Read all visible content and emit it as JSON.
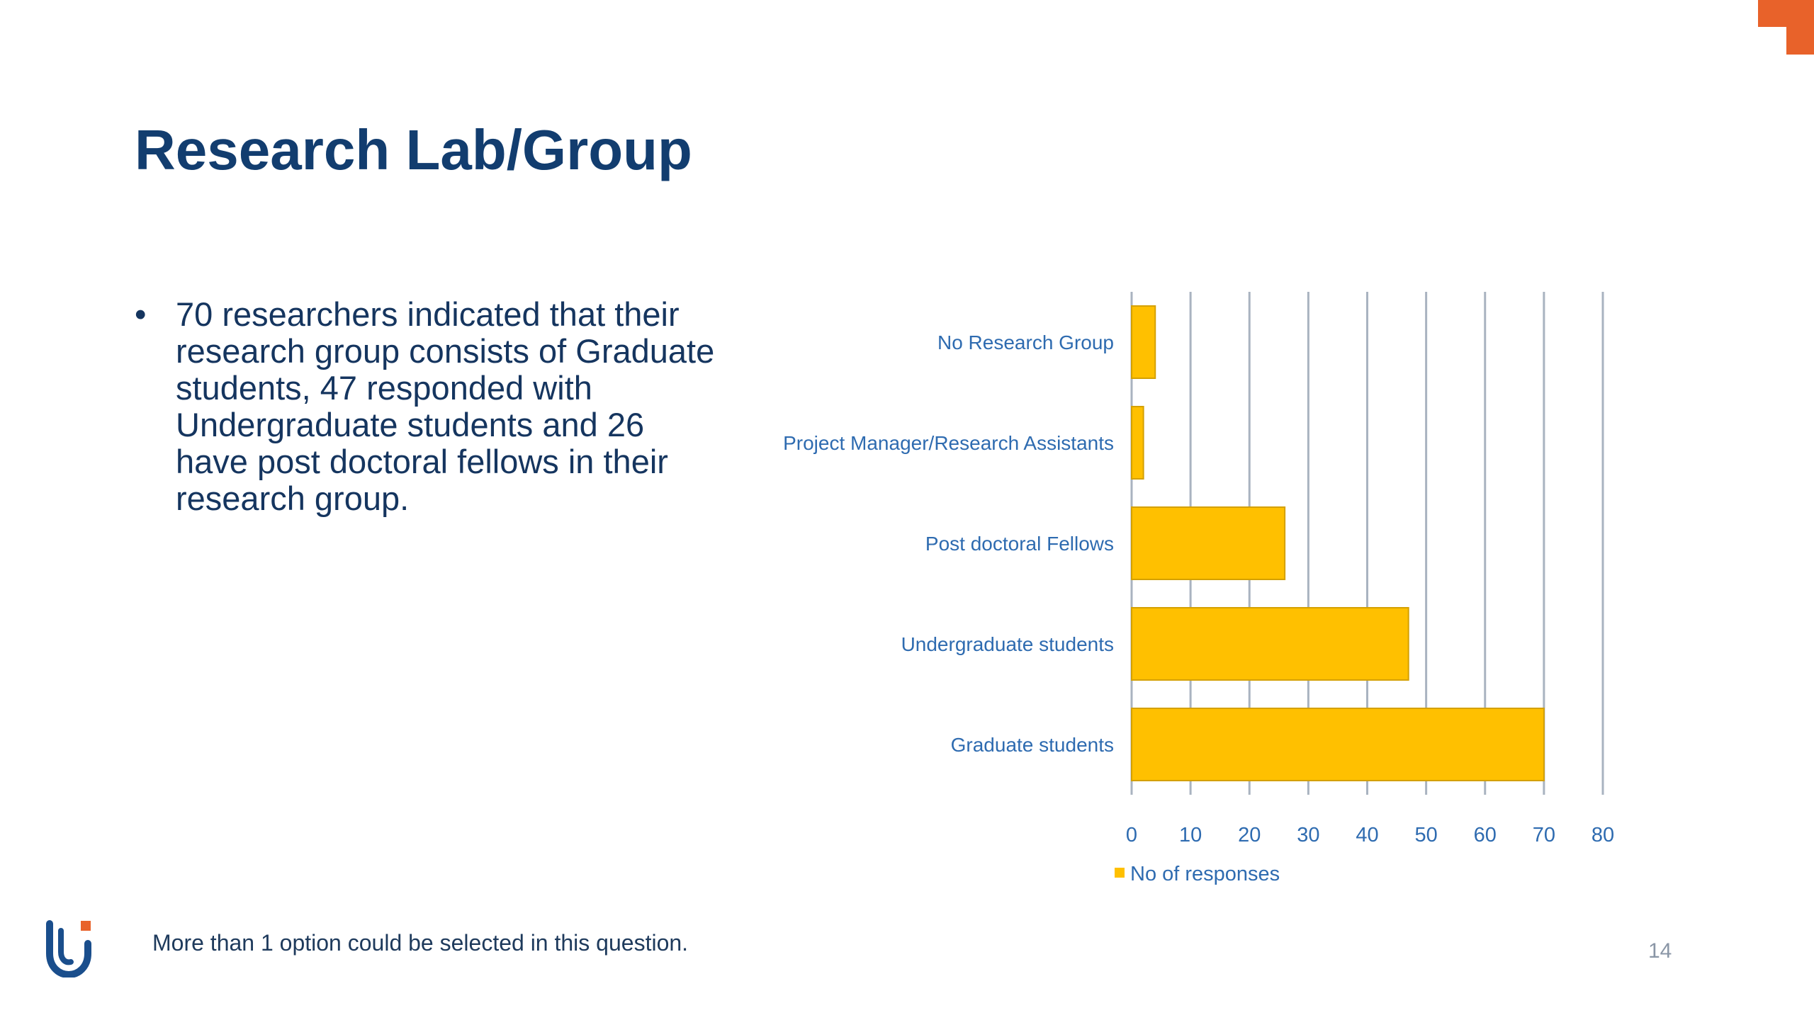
{
  "slide": {
    "title": "Research Lab/Group",
    "bullets": [
      "70 researchers indicated that their research group consists of Graduate students, 47 responded with Undergraduate students and 26 have post doctoral fellows in their research group."
    ],
    "footnote": "More than 1 option could be selected in this question.",
    "page_number": "14"
  },
  "colors": {
    "title": "#123d6f",
    "bar": "#FFC000",
    "bar_stroke": "#D4A000",
    "axis_text": "#2E6BB0",
    "gridline": "#A9B3C0",
    "accent": "#E8622A",
    "logo_blue": "#1A4E8C"
  },
  "chart_data": {
    "type": "bar",
    "orientation": "horizontal",
    "categories": [
      "No Research Group",
      "Project Manager/Research Assistants",
      "Post doctoral Fellows",
      "Undergraduate students",
      "Graduate students"
    ],
    "series": [
      {
        "name": "No of responses",
        "values": [
          4,
          2,
          26,
          47,
          70
        ]
      }
    ],
    "xlim": [
      0,
      80
    ],
    "xticks": [
      0,
      10,
      20,
      30,
      40,
      50,
      60,
      70,
      80
    ],
    "grid": "vertical",
    "legend_position": "bottom"
  }
}
